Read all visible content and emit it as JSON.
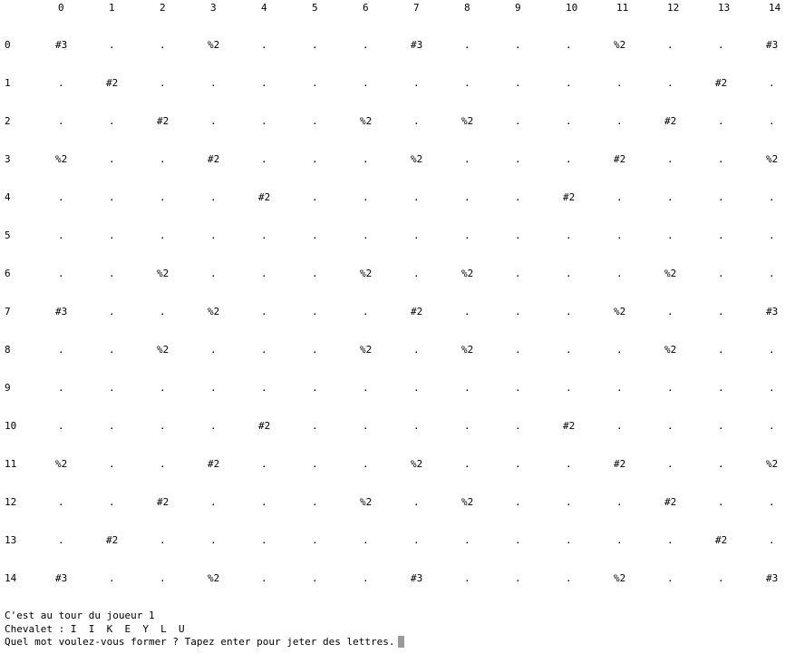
{
  "board": {
    "column_headers": [
      "0",
      "1",
      "2",
      "3",
      "4",
      "5",
      "6",
      "7",
      "8",
      "9",
      "10",
      "11",
      "12",
      "13",
      "14"
    ],
    "rows": [
      {
        "label": "0",
        "cells": [
          "#3",
          ".",
          ".",
          "%2",
          ".",
          ".",
          ".",
          "#3",
          ".",
          ".",
          ".",
          "%2",
          ".",
          ".",
          "#3"
        ]
      },
      {
        "label": "1",
        "cells": [
          ".",
          "#2",
          ".",
          ".",
          ".",
          ".",
          ".",
          ".",
          ".",
          ".",
          ".",
          ".",
          ".",
          "#2",
          "."
        ]
      },
      {
        "label": "2",
        "cells": [
          ".",
          ".",
          "#2",
          ".",
          ".",
          ".",
          "%2",
          ".",
          "%2",
          ".",
          ".",
          ".",
          "#2",
          ".",
          "."
        ]
      },
      {
        "label": "3",
        "cells": [
          "%2",
          ".",
          ".",
          "#2",
          ".",
          ".",
          ".",
          "%2",
          ".",
          ".",
          ".",
          "#2",
          ".",
          ".",
          "%2"
        ]
      },
      {
        "label": "4",
        "cells": [
          ".",
          ".",
          ".",
          ".",
          "#2",
          ".",
          ".",
          ".",
          ".",
          ".",
          "#2",
          ".",
          ".",
          ".",
          "."
        ]
      },
      {
        "label": "5",
        "cells": [
          ".",
          ".",
          ".",
          ".",
          ".",
          ".",
          ".",
          ".",
          ".",
          ".",
          ".",
          ".",
          ".",
          ".",
          "."
        ]
      },
      {
        "label": "6",
        "cells": [
          ".",
          ".",
          "%2",
          ".",
          ".",
          ".",
          "%2",
          ".",
          "%2",
          ".",
          ".",
          ".",
          "%2",
          ".",
          "."
        ]
      },
      {
        "label": "7",
        "cells": [
          "#3",
          ".",
          ".",
          "%2",
          ".",
          ".",
          ".",
          "#2",
          ".",
          ".",
          ".",
          "%2",
          ".",
          ".",
          "#3"
        ]
      },
      {
        "label": "8",
        "cells": [
          ".",
          ".",
          "%2",
          ".",
          ".",
          ".",
          "%2",
          ".",
          "%2",
          ".",
          ".",
          ".",
          "%2",
          ".",
          "."
        ]
      },
      {
        "label": "9",
        "cells": [
          ".",
          ".",
          ".",
          ".",
          ".",
          ".",
          ".",
          ".",
          ".",
          ".",
          ".",
          ".",
          ".",
          ".",
          "."
        ]
      },
      {
        "label": "10",
        "cells": [
          ".",
          ".",
          ".",
          ".",
          "#2",
          ".",
          ".",
          ".",
          ".",
          ".",
          "#2",
          ".",
          ".",
          ".",
          "."
        ]
      },
      {
        "label": "11",
        "cells": [
          "%2",
          ".",
          ".",
          "#2",
          ".",
          ".",
          ".",
          "%2",
          ".",
          ".",
          ".",
          "#2",
          ".",
          ".",
          "%2"
        ]
      },
      {
        "label": "12",
        "cells": [
          ".",
          ".",
          "#2",
          ".",
          ".",
          ".",
          "%2",
          ".",
          "%2",
          ".",
          ".",
          ".",
          "#2",
          ".",
          "."
        ]
      },
      {
        "label": "13",
        "cells": [
          ".",
          "#2",
          ".",
          ".",
          ".",
          ".",
          ".",
          ".",
          ".",
          ".",
          ".",
          ".",
          ".",
          "#2",
          "."
        ]
      },
      {
        "label": "14",
        "cells": [
          "#3",
          ".",
          ".",
          "%2",
          ".",
          ".",
          ".",
          "#3",
          ".",
          ".",
          ".",
          "%2",
          ".",
          ".",
          "#3"
        ]
      }
    ]
  },
  "status": {
    "turn_line": "C'est au tour du joueur 1",
    "rack_line": "Chevalet : I  I  K  E  Y  L  U",
    "prompt_line": "Quel mot voulez-vous former ? Tapez enter pour jeter des lettres."
  }
}
